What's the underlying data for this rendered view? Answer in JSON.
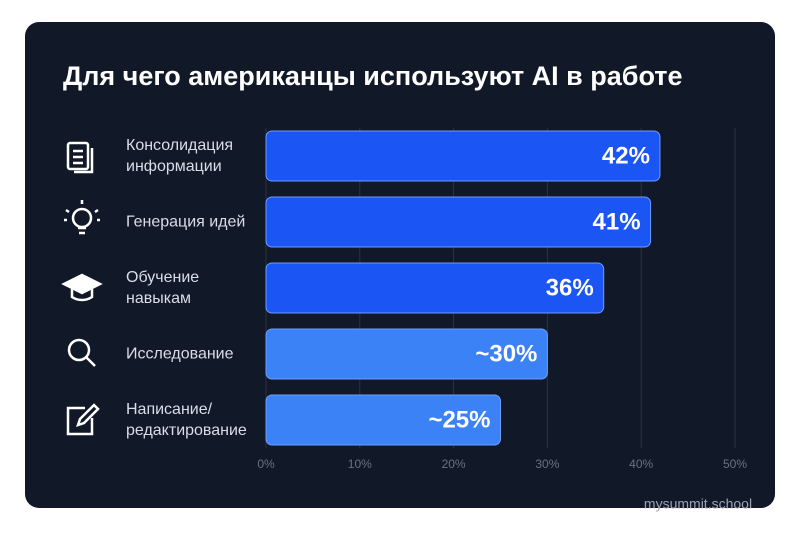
{
  "chart_data": {
    "type": "bar",
    "orientation": "horizontal",
    "title": "Для чего американцы используют AI в работе",
    "categories": [
      "Консолидация информации",
      "Генерация идей",
      "Обучение навыкам",
      "Исследование",
      "Написание/ редактирование"
    ],
    "values": [
      42,
      41,
      36,
      30,
      25
    ],
    "value_labels": [
      "42%",
      "41%",
      "36%",
      "~30%",
      "~25%"
    ],
    "colors": [
      "#1b55f3",
      "#1b55f3",
      "#1b55f3",
      "#3b82f6",
      "#3b82f6"
    ],
    "xlim": [
      0,
      50
    ],
    "xticks": [
      {
        "value": 0,
        "label": "0%"
      },
      {
        "value": 10,
        "label": "10%"
      },
      {
        "value": 20,
        "label": "20%"
      },
      {
        "value": 30,
        "label": "30%"
      },
      {
        "value": 40,
        "label": "40%"
      },
      {
        "value": 50,
        "label": "50%"
      }
    ],
    "grid": true
  },
  "watermark": "mysummit.school"
}
